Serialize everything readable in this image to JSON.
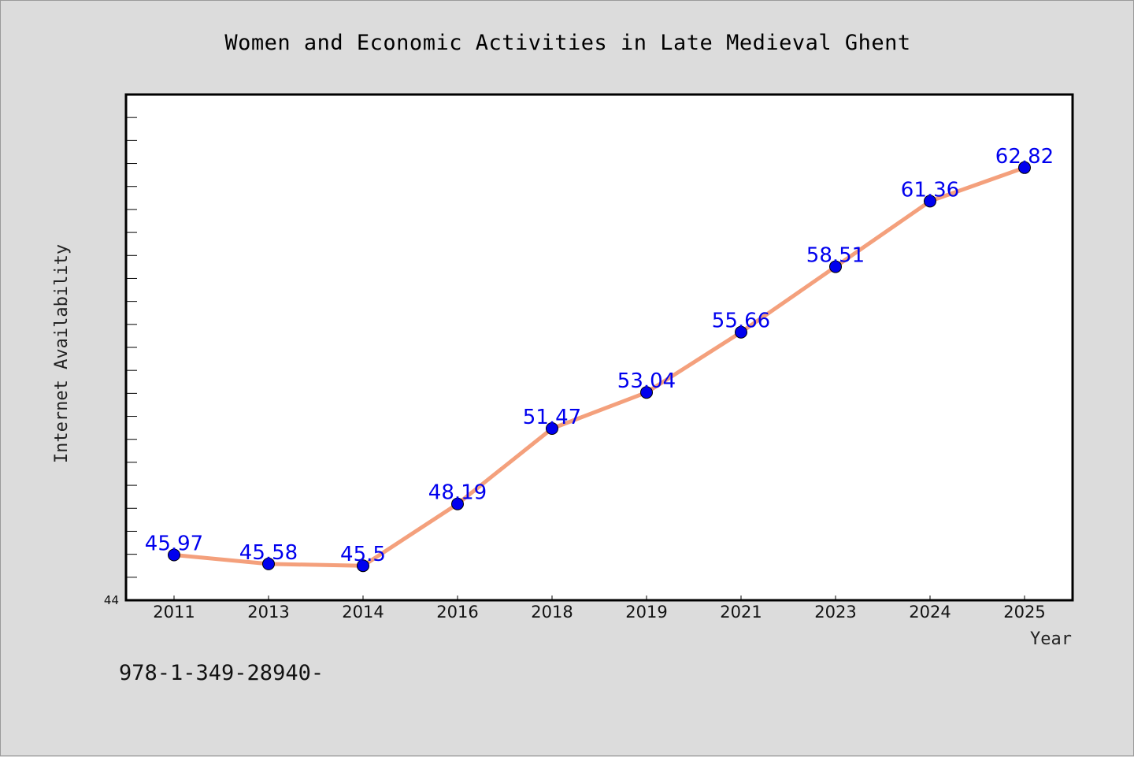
{
  "chart_data": {
    "type": "line",
    "title": "Women and Economic Activities in Late Medieval Ghent",
    "xlabel": "Year",
    "ylabel": "Internet Availability",
    "categories": [
      "2011",
      "2013",
      "2014",
      "2016",
      "2018",
      "2019",
      "2021",
      "2023",
      "2024",
      "2025"
    ],
    "series": [
      {
        "values": [
          45.97,
          45.58,
          45.5,
          48.19,
          51.47,
          53.04,
          55.66,
          58.51,
          61.36,
          62.82
        ],
        "labels": [
          "45.97",
          "45.58",
          "45.5",
          "48.19",
          "51.47",
          "53.04",
          "55.66",
          "58.51",
          "61.36",
          "62.82"
        ],
        "line_color": "#f4a07c",
        "marker_color": "#0000ee",
        "label_color": "#0000ee"
      }
    ],
    "ylim": [
      44,
      66
    ],
    "yticks_labeled": [
      "44"
    ],
    "grid": false,
    "legend": "none"
  },
  "caption": "978-1-349-28940-",
  "colors": {
    "background": "#dcdcdc",
    "plot_background": "#ffffff",
    "axis": "#000000"
  }
}
